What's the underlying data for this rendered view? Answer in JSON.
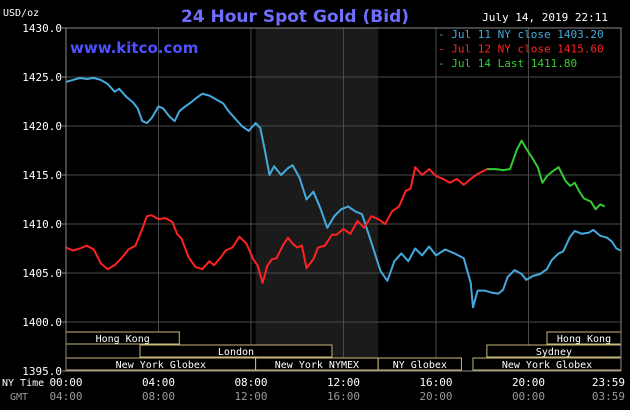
{
  "chart_data": {
    "type": "line",
    "title": "24 Hour Spot Gold (Bid)",
    "datetime": "July 14, 2019 22:11",
    "watermark": "www.kitco.com",
    "ylabel": "USD/oz",
    "ylim": [
      1395,
      1430
    ],
    "yticks": [
      "1430.0",
      "1425.0",
      "1420.0",
      "1415.0",
      "1410.0",
      "1405.0",
      "1400.0",
      "1395.0"
    ],
    "x_ny_ticks": [
      "00:00",
      "04:00",
      "08:00",
      "12:00",
      "16:00",
      "20:00",
      "23:59"
    ],
    "x_gmt_ticks": [
      "04:00",
      "08:00",
      "12:00",
      "16:00",
      "20:00",
      "00:00",
      "03:59"
    ],
    "x_row_labels": {
      "ny": "NY Time",
      "gmt": "GMT"
    },
    "shaded_session": {
      "start_hour": 8.2,
      "end_hour": 13.5
    },
    "grid": true,
    "legend_position": "top-right",
    "series": [
      {
        "name": "Jul 11 NY close 1403.20",
        "color": "#44aadd",
        "points": [
          [
            0,
            1424.5
          ],
          [
            0.3,
            1424.7
          ],
          [
            0.6,
            1424.9
          ],
          [
            0.9,
            1424.8
          ],
          [
            1.2,
            1424.9
          ],
          [
            1.5,
            1424.7
          ],
          [
            1.8,
            1424.3
          ],
          [
            2.1,
            1423.5
          ],
          [
            2.3,
            1423.8
          ],
          [
            2.6,
            1423.0
          ],
          [
            2.9,
            1422.4
          ],
          [
            3.1,
            1421.8
          ],
          [
            3.3,
            1420.5
          ],
          [
            3.5,
            1420.3
          ],
          [
            3.7,
            1420.8
          ],
          [
            4.0,
            1422.0
          ],
          [
            4.2,
            1421.8
          ],
          [
            4.5,
            1420.9
          ],
          [
            4.7,
            1420.5
          ],
          [
            4.9,
            1421.5
          ],
          [
            5.1,
            1421.9
          ],
          [
            5.4,
            1422.4
          ],
          [
            5.6,
            1422.8
          ],
          [
            5.9,
            1423.3
          ],
          [
            6.2,
            1423.1
          ],
          [
            6.5,
            1422.7
          ],
          [
            6.8,
            1422.3
          ],
          [
            7.0,
            1421.6
          ],
          [
            7.3,
            1420.8
          ],
          [
            7.6,
            1420.0
          ],
          [
            7.9,
            1419.5
          ],
          [
            8.2,
            1420.3
          ],
          [
            8.4,
            1419.8
          ],
          [
            8.6,
            1417.5
          ],
          [
            8.8,
            1415.0
          ],
          [
            9.0,
            1415.9
          ],
          [
            9.3,
            1415.0
          ],
          [
            9.6,
            1415.7
          ],
          [
            9.8,
            1416.0
          ],
          [
            10.1,
            1414.7
          ],
          [
            10.4,
            1412.5
          ],
          [
            10.7,
            1413.3
          ],
          [
            11.0,
            1411.6
          ],
          [
            11.3,
            1409.6
          ],
          [
            11.6,
            1410.8
          ],
          [
            11.9,
            1411.5
          ],
          [
            12.2,
            1411.8
          ],
          [
            12.5,
            1411.3
          ],
          [
            12.8,
            1411.0
          ],
          [
            13.0,
            1409.6
          ],
          [
            13.3,
            1407.4
          ],
          [
            13.6,
            1405.2
          ],
          [
            13.9,
            1404.2
          ],
          [
            14.2,
            1406.2
          ],
          [
            14.5,
            1407.0
          ],
          [
            14.8,
            1406.2
          ],
          [
            15.1,
            1407.5
          ],
          [
            15.4,
            1406.8
          ],
          [
            15.7,
            1407.7
          ],
          [
            16.0,
            1406.8
          ],
          [
            16.4,
            1407.4
          ],
          [
            16.8,
            1407.0
          ],
          [
            17.2,
            1406.5
          ],
          [
            17.5,
            1404.0
          ],
          [
            17.6,
            1401.5
          ],
          [
            17.8,
            1403.2
          ],
          [
            18.1,
            1403.2
          ],
          [
            18.4,
            1403.0
          ],
          [
            18.7,
            1402.9
          ],
          [
            18.9,
            1403.3
          ],
          [
            19.1,
            1404.6
          ],
          [
            19.4,
            1405.3
          ],
          [
            19.7,
            1404.9
          ],
          [
            19.9,
            1404.3
          ],
          [
            20.2,
            1404.7
          ],
          [
            20.5,
            1404.9
          ],
          [
            20.8,
            1405.4
          ],
          [
            21.0,
            1406.3
          ],
          [
            21.3,
            1407.0
          ],
          [
            21.5,
            1407.2
          ],
          [
            21.8,
            1408.7
          ],
          [
            22.0,
            1409.3
          ],
          [
            22.3,
            1409.0
          ],
          [
            22.6,
            1409.1
          ],
          [
            22.8,
            1409.4
          ],
          [
            23.1,
            1408.8
          ],
          [
            23.4,
            1408.6
          ],
          [
            23.6,
            1408.2
          ],
          [
            23.8,
            1407.5
          ],
          [
            23.99,
            1407.3
          ]
        ]
      },
      {
        "name": "Jul 12 NY close 1415.60",
        "color": "#ff2222",
        "points": [
          [
            0,
            1407.6
          ],
          [
            0.3,
            1407.3
          ],
          [
            0.6,
            1407.5
          ],
          [
            0.9,
            1407.8
          ],
          [
            1.2,
            1407.4
          ],
          [
            1.5,
            1406.0
          ],
          [
            1.8,
            1405.4
          ],
          [
            2.1,
            1405.8
          ],
          [
            2.4,
            1406.5
          ],
          [
            2.7,
            1407.4
          ],
          [
            3.0,
            1407.8
          ],
          [
            3.3,
            1409.5
          ],
          [
            3.5,
            1410.8
          ],
          [
            3.7,
            1410.9
          ],
          [
            4.0,
            1410.5
          ],
          [
            4.3,
            1410.6
          ],
          [
            4.6,
            1410.2
          ],
          [
            4.8,
            1409.0
          ],
          [
            5.0,
            1408.5
          ],
          [
            5.3,
            1406.6
          ],
          [
            5.6,
            1405.6
          ],
          [
            5.9,
            1405.4
          ],
          [
            6.2,
            1406.2
          ],
          [
            6.4,
            1405.8
          ],
          [
            6.7,
            1406.6
          ],
          [
            6.9,
            1407.3
          ],
          [
            7.2,
            1407.6
          ],
          [
            7.5,
            1408.7
          ],
          [
            7.8,
            1408.0
          ],
          [
            8.1,
            1406.4
          ],
          [
            8.3,
            1405.7
          ],
          [
            8.5,
            1404.0
          ],
          [
            8.7,
            1405.7
          ],
          [
            8.9,
            1406.4
          ],
          [
            9.1,
            1406.5
          ],
          [
            9.4,
            1407.9
          ],
          [
            9.6,
            1408.6
          ],
          [
            9.8,
            1408.0
          ],
          [
            10.0,
            1407.6
          ],
          [
            10.2,
            1407.8
          ],
          [
            10.4,
            1405.5
          ],
          [
            10.7,
            1406.4
          ],
          [
            10.9,
            1407.6
          ],
          [
            11.2,
            1407.8
          ],
          [
            11.5,
            1408.9
          ],
          [
            11.7,
            1408.9
          ],
          [
            12.0,
            1409.5
          ],
          [
            12.3,
            1409.0
          ],
          [
            12.6,
            1410.3
          ],
          [
            12.9,
            1409.6
          ],
          [
            13.2,
            1410.8
          ],
          [
            13.5,
            1410.5
          ],
          [
            13.8,
            1410.0
          ],
          [
            14.1,
            1411.3
          ],
          [
            14.4,
            1411.8
          ],
          [
            14.7,
            1413.4
          ],
          [
            14.9,
            1413.6
          ],
          [
            15.1,
            1415.8
          ],
          [
            15.4,
            1415.0
          ],
          [
            15.7,
            1415.6
          ],
          [
            16.0,
            1414.9
          ],
          [
            16.3,
            1414.6
          ],
          [
            16.6,
            1414.2
          ],
          [
            16.9,
            1414.6
          ],
          [
            17.2,
            1414.0
          ],
          [
            17.5,
            1414.6
          ],
          [
            17.8,
            1415.1
          ],
          [
            18.2,
            1415.6
          ]
        ]
      },
      {
        "name": "Jul 14 Last 1411.80",
        "color": "#33cc33",
        "points": [
          [
            18.2,
            1415.6
          ],
          [
            18.6,
            1415.6
          ],
          [
            18.9,
            1415.5
          ],
          [
            19.2,
            1415.6
          ],
          [
            19.5,
            1417.6
          ],
          [
            19.7,
            1418.5
          ],
          [
            19.9,
            1417.7
          ],
          [
            20.2,
            1416.6
          ],
          [
            20.4,
            1415.8
          ],
          [
            20.6,
            1414.2
          ],
          [
            20.8,
            1414.9
          ],
          [
            21.0,
            1415.3
          ],
          [
            21.3,
            1415.8
          ],
          [
            21.6,
            1414.4
          ],
          [
            21.8,
            1413.9
          ],
          [
            22.0,
            1414.2
          ],
          [
            22.2,
            1413.3
          ],
          [
            22.4,
            1412.6
          ],
          [
            22.7,
            1412.3
          ],
          [
            22.9,
            1411.5
          ],
          [
            23.1,
            1412.0
          ],
          [
            23.3,
            1411.8
          ]
        ]
      }
    ],
    "sessions": [
      {
        "label": "Hong Kong",
        "row": 0,
        "start": 0.0,
        "end": 4.9
      },
      {
        "label": "Hong Kong",
        "row": 0,
        "start": 20.8,
        "end": 24.0
      },
      {
        "label": "London",
        "row": 1,
        "start": 3.2,
        "end": 11.5
      },
      {
        "label": "Sydney",
        "row": 1,
        "start": 18.2,
        "end": 24.0
      },
      {
        "label": "New York Globex",
        "row": 2,
        "start": 0.0,
        "end": 8.2
      },
      {
        "label": "New York NYMEX",
        "row": 2,
        "start": 8.2,
        "end": 13.5
      },
      {
        "label": "NY Globex",
        "row": 2,
        "start": 13.5,
        "end": 17.1
      },
      {
        "label": "New York Globex",
        "row": 2,
        "start": 17.6,
        "end": 24.0
      }
    ]
  }
}
